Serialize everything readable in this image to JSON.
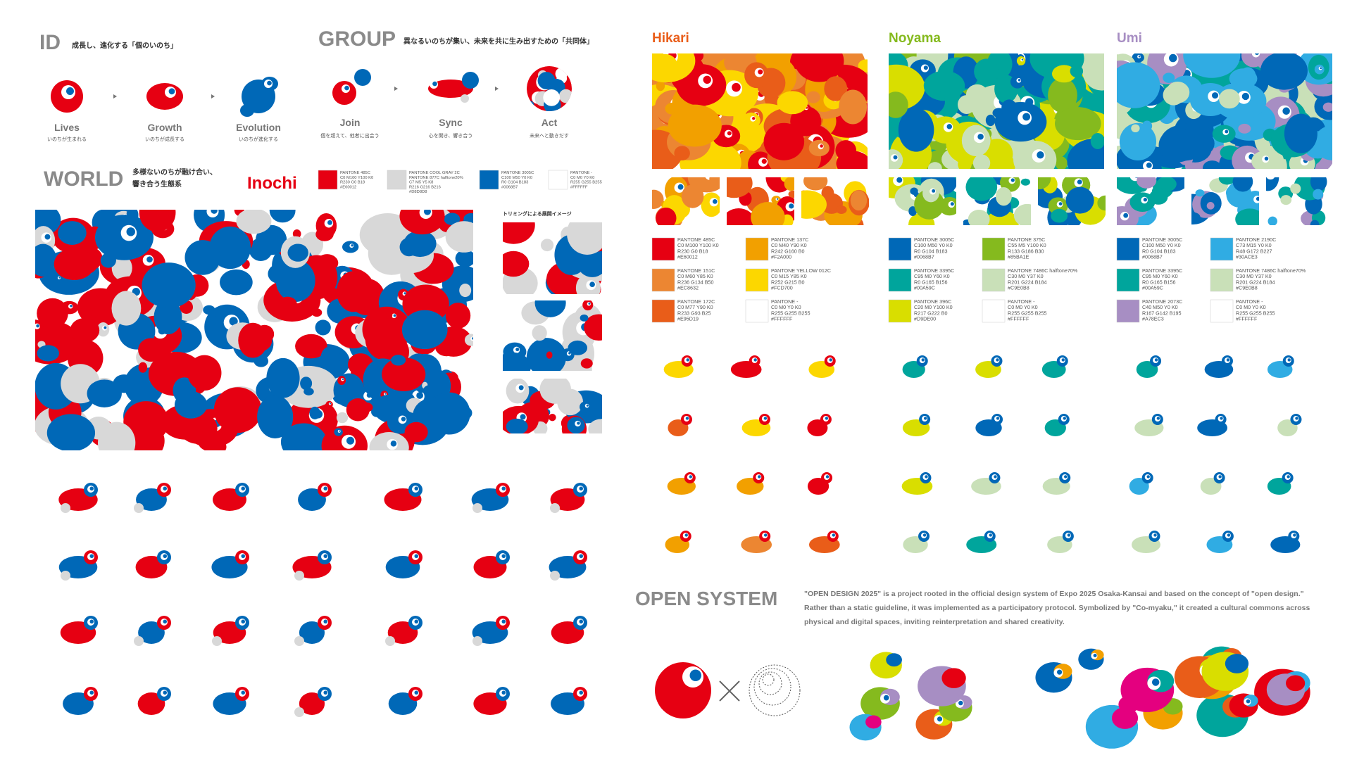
{
  "id": {
    "title": "ID",
    "subtitle": "成長し、進化する「個のいのち」",
    "stages": [
      {
        "label": "Lives",
        "caption": "いのちが生まれる"
      },
      {
        "label": "Growth",
        "caption": "いのちが成長する"
      },
      {
        "label": "Evolution",
        "caption": "いのちが進化する"
      }
    ]
  },
  "group": {
    "title": "GROUP",
    "subtitle": "異なるいのちが集い、未来を共に生み出すための「共同体」",
    "stages": [
      {
        "label": "Join",
        "caption": "個を超えて、他者に出会う"
      },
      {
        "label": "Sync",
        "caption": "心を開き、響き合う"
      },
      {
        "label": "Act",
        "caption": "未来へと動きだす"
      }
    ]
  },
  "world": {
    "title": "WORLD",
    "subtitle": [
      "多様ないのちが融け合い、",
      "響き合う生態系"
    ],
    "palette_name": "Inochi",
    "trimming": "トリミングによる展開イメージ",
    "swatches": [
      {
        "lines": [
          "PANTONE 485C",
          "C0 M100 Y100 K0",
          "R230 G0 B18",
          "#E60012"
        ]
      },
      {
        "lines": [
          "PANTONE COOL GRAY 2C",
          "PANTONE 877C halftone20%",
          "C7 M5 Y5 K8",
          "R216 G216 B216",
          "#D8D8D8"
        ]
      },
      {
        "lines": [
          "PANTONE 3005C",
          "C100 M50 Y0 K0",
          "R0 G104 B183",
          "#0068B7"
        ]
      },
      {
        "lines": [
          "PANTONE -",
          "C0 M0 Y0 K0",
          "R255 G255 B255",
          "#FFFFFF"
        ]
      }
    ]
  },
  "themes": [
    {
      "name": "Hikari",
      "swatches": [
        {
          "lines": [
            "PANTONE 485C",
            "C0 M100 Y100 K0",
            "R230 G0 B18",
            "#E60012"
          ]
        },
        {
          "lines": [
            "PANTONE 137C",
            "C0 M40 Y90 K0",
            "R242 G160 B0",
            "#F2A000"
          ]
        },
        {
          "lines": [
            "PANTONE 151C",
            "C0 M60 Y85 K0",
            "R236 G134 B50",
            "#EC8632"
          ]
        },
        {
          "lines": [
            "PANTONE YELLOW 012C",
            "C0 M15 Y85 K0",
            "R252 G215 B0",
            "#FCD700"
          ]
        },
        {
          "lines": [
            "PANTONE 172C",
            "C0 M77 Y90 K0",
            "R233 G93 B25",
            "#E95D19"
          ]
        },
        {
          "lines": [
            "PANTONE -",
            "C0 M0 Y0 K0",
            "R255 G255 B255",
            "#FFFFFF"
          ]
        }
      ]
    },
    {
      "name": "Noyama",
      "swatches": [
        {
          "lines": [
            "PANTONE 3005C",
            "C100 M50 Y0 K0",
            "R0 G104 B183",
            "#0068B7"
          ]
        },
        {
          "lines": [
            "PANTONE 375C",
            "C55 M5 Y100 K0",
            "R133 G186 B30",
            "#85BA1E"
          ]
        },
        {
          "lines": [
            "PANTONE 3395C",
            "C95 M0 Y60 K0",
            "R0 G165 B156",
            "#00A59C"
          ]
        },
        {
          "lines": [
            "PANTONE 7486C halftone70%",
            "C30 M0 Y37 K0",
            "R201 G224 B184",
            "#C9E0B8"
          ]
        },
        {
          "lines": [
            "PANTONE 396C",
            "C20 M0 Y100 K0",
            "R217 G222 B0",
            "#D9DE00"
          ]
        },
        {
          "lines": [
            "PANTONE -",
            "C0 M0 Y0 K0",
            "R255 G255 B255",
            "#FFFFFF"
          ]
        }
      ]
    },
    {
      "name": "Umi",
      "swatches": [
        {
          "lines": [
            "PANTONE 3005C",
            "C100 M50 Y0 K0",
            "R0 G104 B183",
            "#0068B7"
          ]
        },
        {
          "lines": [
            "PANTONE 2190C",
            "C73 M15 Y0 K0",
            "R48 G172 B227",
            "#30ACE3"
          ]
        },
        {
          "lines": [
            "PANTONE 3395C",
            "C95 M0 Y60 K0",
            "R0 G165 B156",
            "#00A59C"
          ]
        },
        {
          "lines": [
            "PANTONE 7486C halftone70%",
            "C30 M0 Y37 K0",
            "R201 G224 B184",
            "#C9E0B8"
          ]
        },
        {
          "lines": [
            "PANTONE 2073C",
            "C40 M50 Y0 K0",
            "R167 G142 B195",
            "#A78EC3"
          ]
        },
        {
          "lines": [
            "PANTONE -",
            "C0 M0 Y0 K0",
            "R255 G255 B255",
            "#FFFFFF"
          ]
        }
      ]
    }
  ],
  "open_system": {
    "title": "OPEN SYSTEM",
    "body": "\"OPEN DESIGN 2025\" is a project rooted in the official design system of Expo 2025 Osaka-Kansai and based on the concept of \"open design.\" Rather than a static guideline, it was implemented as a participatory protocol. Symbolized by \"Co-myaku,\" it created a cultural commons across physical and digital spaces, inviting reinterpretation and shared creativity."
  }
}
